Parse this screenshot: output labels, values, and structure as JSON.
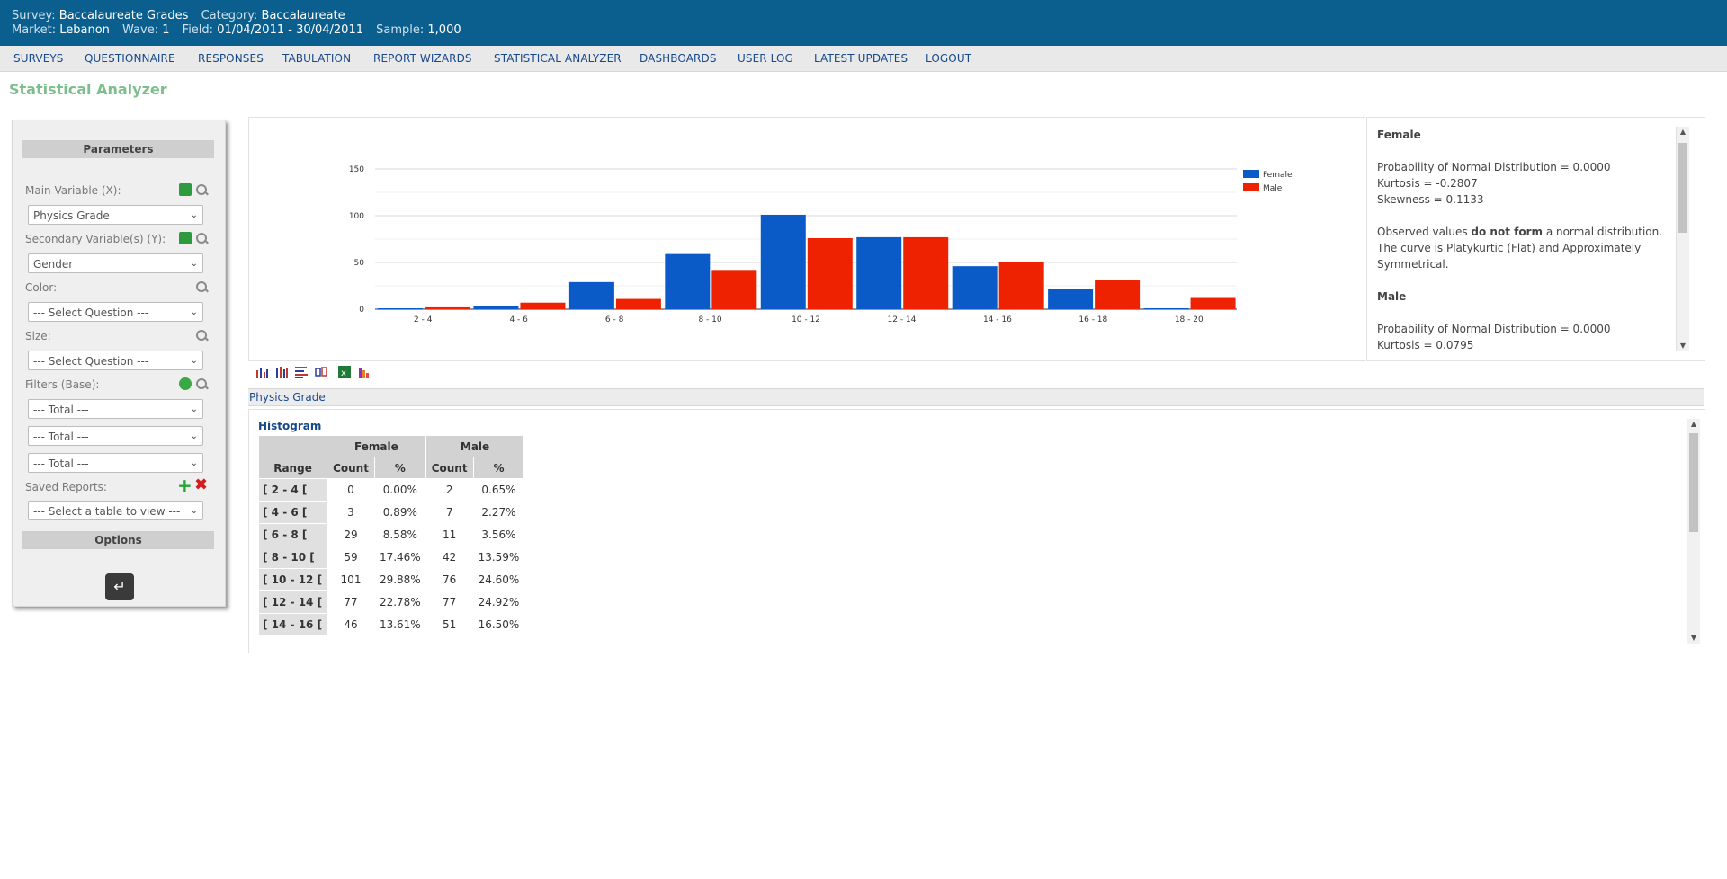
{
  "header": {
    "survey_label": "Survey:",
    "survey": "Baccalaureate Grades",
    "category_label": "Category:",
    "category": "Baccalaureate",
    "market_label": "Market:",
    "market": "Lebanon",
    "wave_label": "Wave:",
    "wave": "1",
    "field_label": "Field:",
    "field": "01/04/2011 - 30/04/2011",
    "sample_label": "Sample:",
    "sample": "1,000"
  },
  "menu": [
    "SURVEYS",
    "QUESTIONNAIRE",
    "RESPONSES",
    "TABULATION",
    "REPORT WIZARDS",
    "STATISTICAL ANALYZER",
    "DASHBOARDS",
    "USER LOG",
    "LATEST UPDATES",
    "LOGOUT"
  ],
  "page_title": "Statistical Analyzer",
  "params": {
    "header": "Parameters",
    "main_label": "Main Variable (X):",
    "main_value": "Physics Grade",
    "secondary_label": "Secondary Variable(s) (Y):",
    "secondary_value": "Gender",
    "color_label": "Color:",
    "color_value": "--- Select Question ---",
    "size_label": "Size:",
    "size_value": "--- Select Question ---",
    "filters_label": "Filters (Base):",
    "filters": [
      "--- Total ---",
      "--- Total ---",
      "--- Total ---"
    ],
    "saved_label": "Saved Reports:",
    "saved_value": "--- Select a table to view ---",
    "options_header": "Options"
  },
  "stats": {
    "female_title": "Female",
    "female_prob": "Probability of Normal Distribution = 0.0000",
    "female_kurtosis": "Kurtosis = -0.2807",
    "female_skewness": "Skewness = 0.1133",
    "obs_prefix": "Observed values ",
    "obs_bold": "do not form",
    "obs_suffix": " a normal distribution.",
    "curve": "The curve is Platykurtic (Flat) and Approximately Symmetrical.",
    "male_title": "Male",
    "male_prob": "Probability of Normal Distribution = 0.0000",
    "male_kurtosis": "Kurtosis = 0.0795"
  },
  "section_title": "Physics Grade",
  "table": {
    "title": "Histogram",
    "group_headers": [
      "Female",
      "Male"
    ],
    "sub_headers": [
      "Range",
      "Count",
      "%",
      "Count",
      "%"
    ],
    "rows": [
      [
        "[ 2 - 4 [",
        "0",
        "0.00%",
        "2",
        "0.65%"
      ],
      [
        "[ 4 - 6 [",
        "3",
        "0.89%",
        "7",
        "2.27%"
      ],
      [
        "[ 6 - 8 [",
        "29",
        "8.58%",
        "11",
        "3.56%"
      ],
      [
        "[ 8 - 10 [",
        "59",
        "17.46%",
        "42",
        "13.59%"
      ],
      [
        "[ 10 - 12 [",
        "101",
        "29.88%",
        "76",
        "24.60%"
      ],
      [
        "[ 12 - 14 [",
        "77",
        "22.78%",
        "77",
        "24.92%"
      ],
      [
        "[ 14 - 16 [",
        "46",
        "13.61%",
        "51",
        "16.50%"
      ]
    ]
  },
  "chart_data": {
    "type": "bar",
    "categories": [
      "2 - 4",
      "4 - 6",
      "6 - 8",
      "8 - 10",
      "10 - 12",
      "12 - 14",
      "14 - 16",
      "16 - 18",
      "18 - 20"
    ],
    "series": [
      {
        "name": "Female",
        "color": "#0a5ac8",
        "values": [
          0,
          3,
          29,
          59,
          101,
          77,
          46,
          22,
          1
        ]
      },
      {
        "name": "Male",
        "color": "#ee2200",
        "values": [
          2,
          7,
          11,
          42,
          76,
          77,
          51,
          31,
          12
        ]
      }
    ],
    "yticks": [
      0,
      50,
      100,
      150
    ],
    "ylim": [
      0,
      150
    ],
    "legend": "right",
    "grid": true
  }
}
